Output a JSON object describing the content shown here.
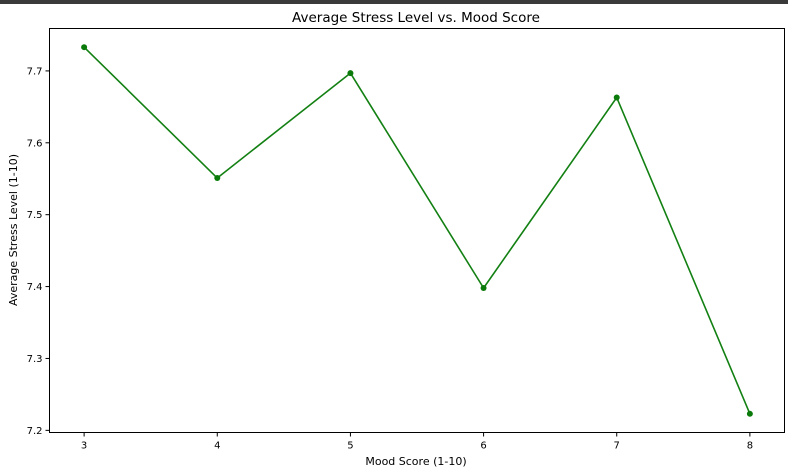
{
  "chart_data": {
    "type": "line",
    "title": "Average Stress Level vs. Mood Score",
    "xlabel": "Mood Score (1-10)",
    "ylabel": "Average Stress Level (1-10)",
    "x": [
      3,
      4,
      5,
      6,
      7,
      8
    ],
    "series": [
      {
        "values": [
          7.733,
          7.551,
          7.697,
          7.398,
          7.663,
          7.223
        ]
      }
    ],
    "xticks": [
      "3",
      "4",
      "5",
      "6",
      "7",
      "8"
    ],
    "yticks": [
      "7.2",
      "7.3",
      "7.4",
      "7.5",
      "7.6",
      "7.7"
    ],
    "xlim": [
      2.74,
      8.26
    ],
    "ylim": [
      7.197,
      7.759
    ],
    "grid": false,
    "marker": "circle",
    "colors": {
      "line": "#138013",
      "marker": "#0a7a0a"
    }
  }
}
